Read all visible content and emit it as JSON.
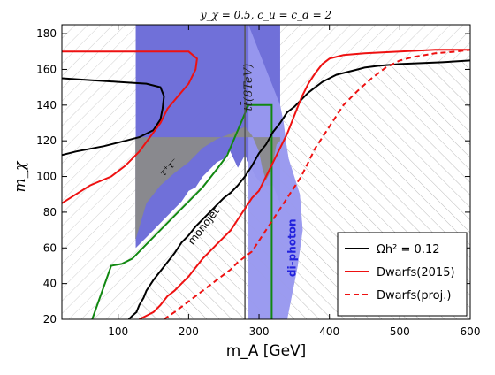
{
  "chart_data": {
    "type": "line",
    "title": "y_χ = 0.5, c_u = c_d = 2",
    "xlabel": "m_A [GeV]",
    "ylabel": "m_χ",
    "xlim": [
      20,
      600
    ],
    "ylim": [
      20,
      185
    ],
    "xticks": [
      100,
      200,
      300,
      400,
      500,
      600
    ],
    "yticks": [
      20,
      40,
      60,
      80,
      100,
      120,
      140,
      160,
      180
    ],
    "grid": false,
    "legend_position": "lower-right",
    "legend": [
      {
        "label": "Ωh² = 0.12",
        "color": "#000000",
        "style": "solid"
      },
      {
        "label": "Dwarfs(2015)",
        "color": "#ee1111",
        "style": "solid"
      },
      {
        "label": "Dwarfs(proj.)",
        "color": "#ee1111",
        "style": "dashed"
      }
    ],
    "annotations": {
      "ttbar": "tt̄(8TeV)",
      "tautau": "τ⁺τ⁻",
      "monojet": "monojet",
      "diphoton": "di-photon"
    },
    "series": [
      {
        "name": "Ωh² = 0.12",
        "color": "#000000",
        "style": "solid",
        "x": [
          115,
          120,
          126,
          130,
          136,
          140,
          150,
          160,
          170,
          180,
          190,
          200,
          210,
          220,
          230,
          240,
          250,
          260,
          270,
          280,
          290,
          300,
          310,
          320,
          330,
          340,
          350,
          360,
          370,
          380,
          390,
          400,
          410,
          420,
          430,
          440,
          450,
          470,
          500,
          530,
          560,
          600
        ],
        "y": [
          20,
          22,
          24,
          28,
          32,
          36,
          42,
          47,
          52,
          57,
          63,
          67,
          72,
          76,
          80,
          84,
          88,
          91,
          95,
          100,
          106,
          113,
          118,
          125,
          130,
          136,
          139,
          143,
          147,
          150,
          153,
          155,
          157,
          158,
          159,
          160,
          161,
          162,
          163,
          163.5,
          164,
          165
        ]
      },
      {
        "name": "Ωh² = 0.12 (upper)",
        "color": "#000000",
        "style": "solid",
        "x": [
          20,
          60,
          100,
          140,
          160,
          165,
          163,
          160,
          150,
          140,
          130,
          110,
          80,
          40,
          20
        ],
        "y": [
          155,
          154,
          153,
          152,
          150,
          145,
          138,
          132,
          126,
          124,
          122,
          120,
          117,
          114,
          112
        ]
      },
      {
        "name": "Dwarfs(2015)",
        "color": "#ee1111",
        "style": "solid",
        "x": [
          130,
          140,
          150,
          160,
          170,
          180,
          190,
          200,
          210,
          220,
          230,
          240,
          250,
          260,
          270,
          280,
          290,
          300,
          310,
          320,
          330,
          340,
          350,
          360,
          370,
          380,
          390,
          400,
          420,
          450,
          500,
          550,
          600
        ],
        "y": [
          20,
          22,
          24,
          28,
          33,
          36,
          40,
          44,
          49,
          54,
          58,
          62,
          66,
          70,
          76,
          82,
          88,
          92,
          100,
          108,
          116,
          124,
          134,
          144,
          152,
          158,
          163,
          166,
          168,
          169,
          170,
          171,
          171
        ]
      },
      {
        "name": "Dwarfs(2015) (upper)",
        "color": "#ee1111",
        "style": "solid",
        "x": [
          20,
          80,
          150,
          200,
          212,
          210,
          200,
          185,
          170,
          160,
          145,
          130,
          110,
          90,
          60,
          40,
          20
        ],
        "y": [
          170,
          170,
          170,
          170,
          166,
          160,
          152,
          145,
          138,
          130,
          122,
          114,
          106,
          100,
          95,
          90,
          85
        ]
      },
      {
        "name": "Dwarfs(proj.)",
        "color": "#ee1111",
        "style": "dashed",
        "x": [
          165,
          180,
          200,
          220,
          240,
          260,
          270,
          280,
          290,
          300,
          310,
          320,
          330,
          340,
          350,
          360,
          370,
          380,
          400,
          420,
          440,
          460,
          480,
          500,
          520,
          550,
          580,
          600
        ],
        "y": [
          20,
          24,
          30,
          36,
          42,
          48,
          52,
          55,
          58,
          64,
          70,
          76,
          82,
          88,
          94,
          100,
          108,
          116,
          128,
          140,
          148,
          155,
          161,
          165,
          167,
          169,
          170,
          171
        ]
      }
    ],
    "regions": [
      {
        "name": "relic-hatched-region",
        "color": "#999999",
        "style": "hatched",
        "x": [
          115,
          150,
          200,
          250,
          300,
          350,
          400,
          450,
          500,
          550,
          600,
          600,
          300,
          250,
          200,
          150,
          115
        ],
        "y": [
          20,
          42,
          67,
          88,
          113,
          139,
          155,
          161,
          163,
          164,
          165,
          20,
          20,
          20,
          20,
          20,
          20
        ]
      },
      {
        "name": "diphoton-region",
        "color": "#6464e6",
        "x": [
          285,
          290,
          300,
          310,
          320,
          330,
          335,
          338,
          342,
          350,
          358,
          362,
          355,
          350,
          345,
          340,
          330,
          310,
          300,
          290,
          285
        ],
        "y": [
          185,
          180,
          170,
          160,
          150,
          140,
          130,
          120,
          110,
          100,
          90,
          70,
          50,
          40,
          30,
          20,
          20,
          20,
          20,
          20,
          20
        ]
      },
      {
        "name": "ttbar-region",
        "color": "#5a5ad2",
        "x": [
          125,
          330,
          330,
          320,
          305,
          295,
          280,
          270,
          258,
          250,
          240,
          230,
          220,
          210,
          200,
          190,
          180,
          170,
          160,
          150,
          140,
          130,
          125
        ],
        "y": [
          185,
          185,
          85,
          95,
          95,
          100,
          112,
          105,
          115,
          110,
          108,
          104,
          100,
          94,
          92,
          86,
          82,
          78,
          74,
          70,
          66,
          62,
          60
        ]
      },
      {
        "name": "tautau-region",
        "color": "#888888",
        "x": [
          125,
          140,
          160,
          180,
          200,
          220,
          240,
          260,
          275,
          280,
          290,
          300,
          305,
          310,
          318,
          322,
          325,
          330,
          330,
          125
        ],
        "y": [
          65,
          85,
          95,
          102,
          108,
          116,
          121,
          124,
          127,
          128,
          123,
          114,
          104,
          98,
          104,
          112,
          118,
          120,
          122,
          122
        ]
      },
      {
        "name": "monojet-line",
        "color": "#118811",
        "style": "solid",
        "x": [
          63,
          90,
          105,
          120,
          140,
          160,
          180,
          200,
          220,
          240,
          255,
          270,
          285,
          300,
          318,
          318
        ],
        "y": [
          20,
          50,
          51,
          54,
          62,
          70,
          78,
          86,
          94,
          104,
          112,
          126,
          140,
          140,
          140,
          20
        ]
      },
      {
        "name": "ttbar-8tev-line",
        "color": "#555555",
        "style": "solid",
        "x": [
          280,
          280
        ],
        "y": [
          20,
          185
        ]
      }
    ]
  }
}
